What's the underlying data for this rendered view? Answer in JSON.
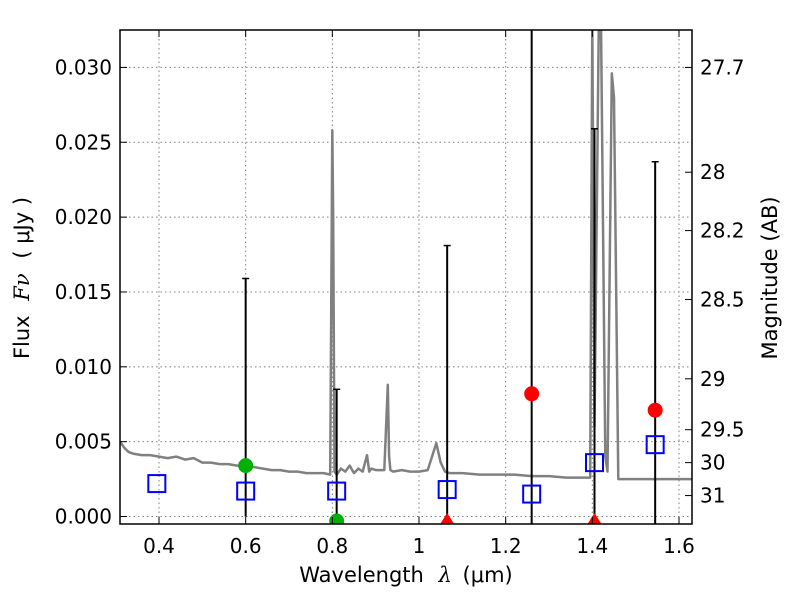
{
  "chart_data": {
    "type": "scatter",
    "xlabel_prefix": "Wavelength",
    "xlabel_symbol": "λ",
    "xlabel_unit": "(μm)",
    "ylabel_prefix": "Flux",
    "ylabel_symbol": "Fν",
    "ylabel_unit": "( μJy )",
    "ylabel_right": "Magnitude (AB)",
    "xlim": [
      0.31,
      1.63
    ],
    "ylim": [
      -0.0005,
      0.0325
    ],
    "grid": true,
    "x_ticks": [
      0.4,
      0.6,
      0.8,
      1.0,
      1.2,
      1.4,
      1.6
    ],
    "x_tick_labels": [
      "0.4",
      "0.6",
      "0.8",
      "1",
      "1.2",
      "1.4",
      "1.6"
    ],
    "y_ticks": [
      0.0,
      0.005,
      0.01,
      0.015,
      0.02,
      0.025,
      0.03
    ],
    "y_tick_labels": [
      "0.000",
      "0.005",
      "0.010",
      "0.015",
      "0.020",
      "0.025",
      "0.030"
    ],
    "right_ticks": [
      {
        "flux": 0.03,
        "label": "27.7"
      },
      {
        "flux": 0.023,
        "label": "28"
      },
      {
        "flux": 0.0191,
        "label": "28.2"
      },
      {
        "flux": 0.0145,
        "label": "28.5"
      },
      {
        "flux": 0.0092,
        "label": "29"
      },
      {
        "flux": 0.0058,
        "label": "29.5"
      },
      {
        "flux": 0.0036,
        "label": "30"
      },
      {
        "flux": 0.0014,
        "label": "31"
      }
    ],
    "colors": {
      "model": "#808080",
      "model_points": "#0000ff",
      "detection": "#00b000",
      "upper_limit": "#ff0000",
      "errorbar": "#000000"
    },
    "model_spectrum": {
      "x": [
        0.31,
        0.32,
        0.33,
        0.34,
        0.36,
        0.38,
        0.4,
        0.42,
        0.44,
        0.46,
        0.48,
        0.5,
        0.52,
        0.54,
        0.56,
        0.58,
        0.6,
        0.62,
        0.64,
        0.66,
        0.68,
        0.7,
        0.72,
        0.74,
        0.76,
        0.78,
        0.795,
        0.8,
        0.802,
        0.805,
        0.81,
        0.82,
        0.83,
        0.84,
        0.85,
        0.86,
        0.87,
        0.88,
        0.885,
        0.89,
        0.9,
        0.92,
        0.928,
        0.931,
        0.934,
        0.94,
        0.96,
        0.98,
        1.0,
        1.02,
        1.04,
        1.05,
        1.06,
        1.07,
        1.1,
        1.14,
        1.18,
        1.22,
        1.26,
        1.3,
        1.34,
        1.38,
        1.395,
        1.4,
        1.405,
        1.415,
        1.42,
        1.43,
        1.435,
        1.445,
        1.45,
        1.46,
        1.48,
        1.52,
        1.56,
        1.6,
        1.63
      ],
      "y": [
        0.005,
        0.0046,
        0.0043,
        0.0042,
        0.0041,
        0.0041,
        0.004,
        0.0039,
        0.004,
        0.0038,
        0.0039,
        0.0036,
        0.0036,
        0.0035,
        0.0035,
        0.0034,
        0.0034,
        0.0033,
        0.0032,
        0.0031,
        0.0031,
        0.003,
        0.003,
        0.0029,
        0.0029,
        0.0029,
        0.0028,
        0.0258,
        0.02,
        0.003,
        0.0028,
        0.0032,
        0.003,
        0.0034,
        0.0029,
        0.0032,
        0.003,
        0.0041,
        0.003,
        0.0032,
        0.0031,
        0.0031,
        0.0088,
        0.004,
        0.0031,
        0.003,
        0.0031,
        0.003,
        0.003,
        0.0031,
        0.0049,
        0.0036,
        0.003,
        0.0029,
        0.0029,
        0.0028,
        0.0028,
        0.0028,
        0.0027,
        0.0027,
        0.0026,
        0.0026,
        0.0026,
        0.033,
        0.006,
        0.033,
        0.033,
        0.004,
        0.003,
        0.0296,
        0.028,
        0.0025,
        0.0025,
        0.0025,
        0.0025,
        0.0025,
        0.0025
      ]
    },
    "model_points": [
      {
        "x": 0.395,
        "y": 0.0022
      },
      {
        "x": 0.6,
        "y": 0.0017
      },
      {
        "x": 0.81,
        "y": 0.0017
      },
      {
        "x": 1.065,
        "y": 0.0018
      },
      {
        "x": 1.26,
        "y": 0.0015
      },
      {
        "x": 1.405,
        "y": 0.0036
      },
      {
        "x": 1.545,
        "y": 0.0048
      }
    ],
    "detections": [
      {
        "x": 0.6,
        "y": 0.0034,
        "yerr_low": 0.0034,
        "yerr_high": 0.0125
      },
      {
        "x": 0.81,
        "y": -0.0003,
        "yerr_low": 0.0,
        "yerr_high": 0.0088
      }
    ],
    "upper_limits": [
      {
        "x": 1.065,
        "y": -0.0003,
        "err_top": 0.0181
      },
      {
        "x": 1.26,
        "y": 0.0082,
        "err_top": 0.033
      },
      {
        "x": 1.405,
        "y": -0.0003,
        "err_top": 0.0259
      },
      {
        "x": 1.545,
        "y": 0.0071,
        "err_top": 0.0237
      }
    ]
  }
}
